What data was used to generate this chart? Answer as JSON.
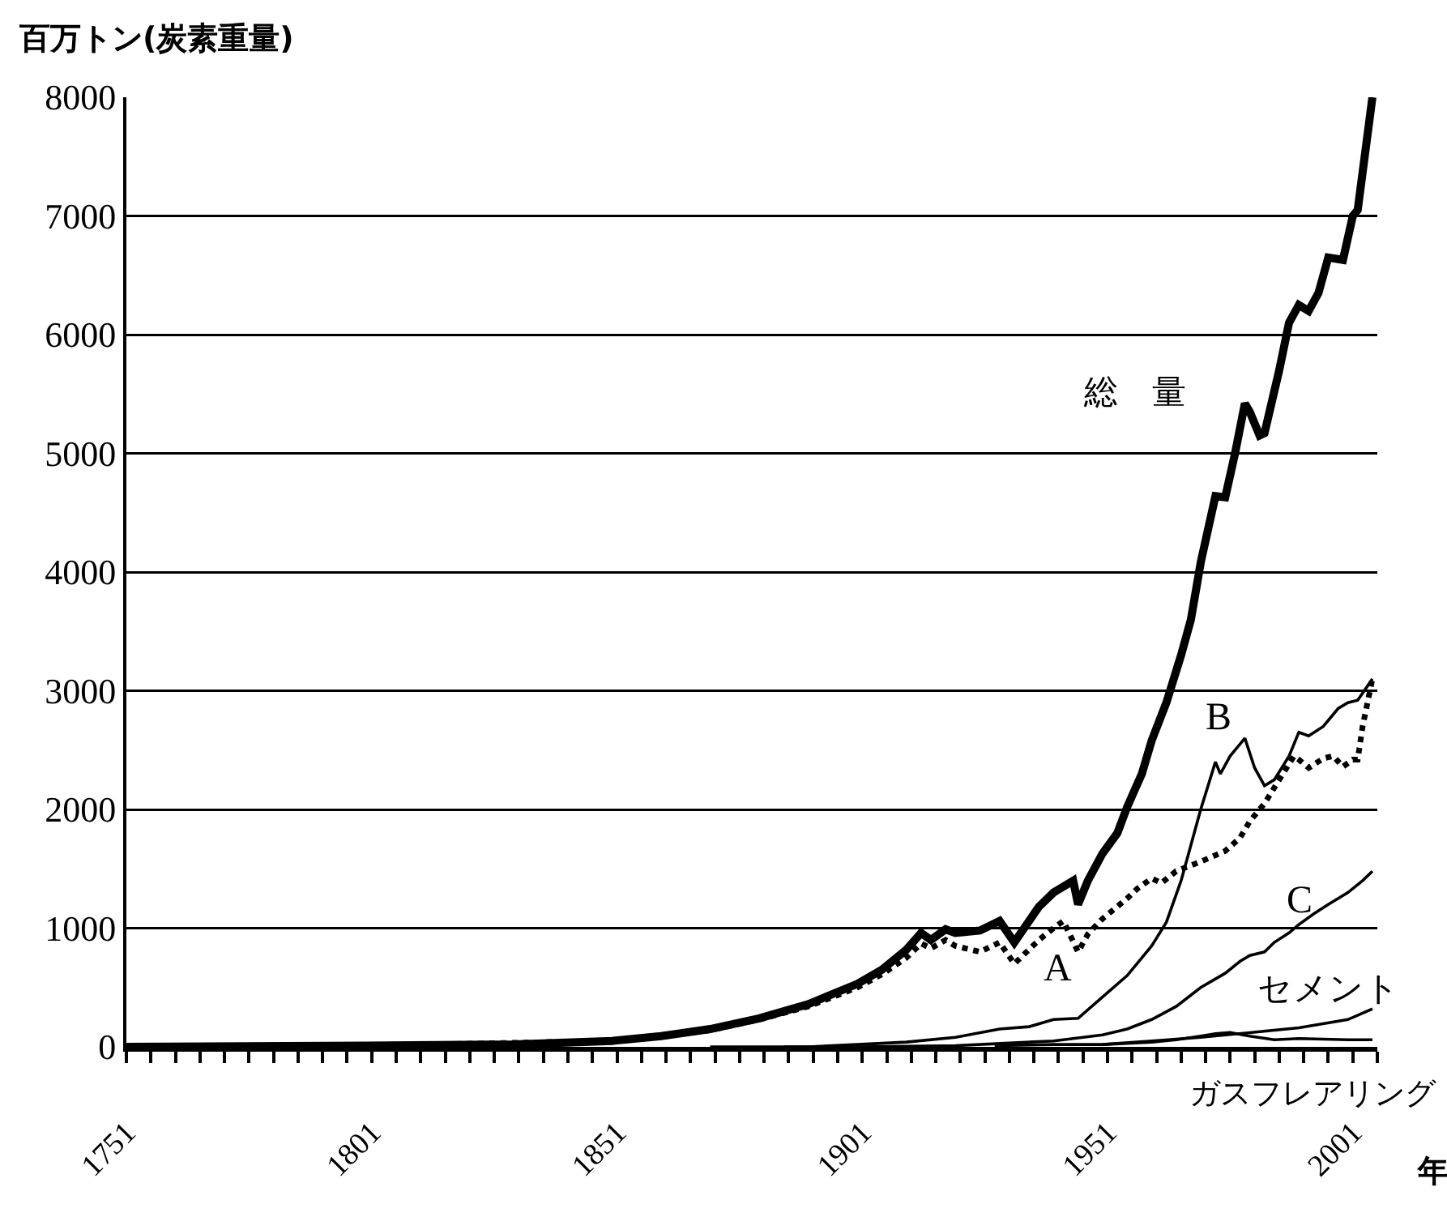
{
  "chart_data": {
    "type": "line",
    "ylabel": "百万トン(炭素重量)",
    "xlabel": "年",
    "xlim": [
      1751,
      2006
    ],
    "ylim": [
      0,
      8000
    ],
    "xticks": [
      1751,
      {
        "value": 1756,
        "label": null
      },
      {
        "value": 1761,
        "label": null
      },
      {
        "value": 1766,
        "label": null
      },
      {
        "value": 1771,
        "label": null
      },
      {
        "value": 1776,
        "label": null
      },
      {
        "value": 1781,
        "label": null
      },
      {
        "value": 1786,
        "label": null
      },
      {
        "value": 1791,
        "label": null
      },
      {
        "value": 1796,
        "label": null
      },
      1801,
      {
        "value": 1806,
        "label": null
      },
      {
        "value": 1811,
        "label": null
      },
      {
        "value": 1816,
        "label": null
      },
      {
        "value": 1821,
        "label": null
      },
      {
        "value": 1826,
        "label": null
      },
      {
        "value": 1831,
        "label": null
      },
      {
        "value": 1836,
        "label": null
      },
      {
        "value": 1841,
        "label": null
      },
      {
        "value": 1846,
        "label": null
      },
      1851,
      {
        "value": 1856,
        "label": null
      },
      {
        "value": 1861,
        "label": null
      },
      {
        "value": 1866,
        "label": null
      },
      {
        "value": 1871,
        "label": null
      },
      {
        "value": 1876,
        "label": null
      },
      {
        "value": 1881,
        "label": null
      },
      {
        "value": 1886,
        "label": null
      },
      {
        "value": 1891,
        "label": null
      },
      {
        "value": 1896,
        "label": null
      },
      1901,
      {
        "value": 1906,
        "label": null
      },
      {
        "value": 1911,
        "label": null
      },
      {
        "value": 1916,
        "label": null
      },
      {
        "value": 1921,
        "label": null
      },
      {
        "value": 1926,
        "label": null
      },
      {
        "value": 1931,
        "label": null
      },
      {
        "value": 1936,
        "label": null
      },
      {
        "value": 1941,
        "label": null
      },
      {
        "value": 1946,
        "label": null
      },
      1951,
      {
        "value": 1956,
        "label": null
      },
      {
        "value": 1961,
        "label": null
      },
      {
        "value": 1966,
        "label": null
      },
      {
        "value": 1971,
        "label": null
      },
      {
        "value": 1976,
        "label": null
      },
      {
        "value": 1981,
        "label": null
      },
      {
        "value": 1986,
        "label": null
      },
      {
        "value": 1991,
        "label": null
      },
      {
        "value": 1996,
        "label": null
      },
      2001,
      {
        "value": 2006,
        "label": null
      }
    ],
    "yticks": [
      0,
      1000,
      2000,
      3000,
      4000,
      5000,
      6000,
      7000,
      8000
    ],
    "grid": "y",
    "legend": false,
    "marker": "none",
    "series": [
      {
        "name": "総　量",
        "color": "#000000",
        "line_style": "solid",
        "x": [
          1751,
          1800,
          1830,
          1850,
          1860,
          1870,
          1880,
          1890,
          1900,
          1905,
          1910,
          1913,
          1915,
          1918,
          1920,
          1925,
          1929,
          1932,
          1937,
          1940,
          1942,
          1944,
          1945,
          1947,
          1950,
          1953,
          1955,
          1958,
          1960,
          1963,
          1966,
          1968,
          1970,
          1973,
          1975,
          1977,
          1979,
          1980,
          1982,
          1983,
          1986,
          1988,
          1990,
          1992,
          1994,
          1996,
          1999,
          2001,
          2002,
          2005
        ],
        "values": [
          0,
          10,
          20,
          50,
          90,
          150,
          240,
          360,
          530,
          650,
          819,
          960,
          900,
          990,
          960,
          980,
          1060,
          880,
          1180,
          1300,
          1350,
          1400,
          1200,
          1400,
          1630,
          1800,
          2020,
          2300,
          2580,
          2900,
          3300,
          3600,
          4080,
          4640,
          4630,
          5000,
          5420,
          5350,
          5150,
          5170,
          5700,
          6100,
          6250,
          6200,
          6350,
          6650,
          6630,
          7000,
          7050,
          8000
        ]
      },
      {
        "name": "A",
        "color": "#000000",
        "line_style": "dotted",
        "x": [
          1751,
          1800,
          1850,
          1860,
          1870,
          1880,
          1890,
          1900,
          1905,
          1910,
          1913,
          1915,
          1918,
          1920,
          1925,
          1929,
          1932,
          1937,
          1940,
          1942,
          1945,
          1947,
          1950,
          1955,
          1957,
          1960,
          1962,
          1965,
          1970,
          1975,
          1978,
          1980,
          1983,
          1986,
          1989,
          1990,
          1992,
          1995,
          1997,
          1999,
          2001,
          2002,
          2003,
          2004,
          2005
        ],
        "values": [
          0,
          10,
          50,
          90,
          140,
          230,
          340,
          500,
          610,
          750,
          870,
          830,
          900,
          850,
          800,
          880,
          700,
          900,
          1000,
          1060,
          800,
          950,
          1080,
          1250,
          1330,
          1420,
          1380,
          1480,
          1560,
          1650,
          1760,
          1900,
          2050,
          2250,
          2450,
          2420,
          2350,
          2430,
          2450,
          2360,
          2420,
          2420,
          2700,
          2900,
          3100
        ]
      },
      {
        "name": "B",
        "color": "#000000",
        "line_style": "solid",
        "x": [
          1870,
          1890,
          1900,
          1910,
          1920,
          1929,
          1935,
          1940,
          1945,
          1950,
          1955,
          1960,
          1963,
          1966,
          1968,
          1970,
          1973,
          1974,
          1976,
          1979,
          1981,
          1983,
          1985,
          1988,
          1990,
          1992,
          1995,
          1998,
          2000,
          2002,
          2005
        ],
        "values": [
          0,
          0,
          20,
          40,
          80,
          150,
          170,
          230,
          240,
          420,
          600,
          850,
          1050,
          1400,
          1700,
          2000,
          2400,
          2300,
          2450,
          2600,
          2350,
          2200,
          2250,
          2450,
          2650,
          2620,
          2700,
          2850,
          2900,
          2920,
          3100
        ]
      },
      {
        "name": "C",
        "color": "#000000",
        "line_style": "solid",
        "x": [
          1885,
          1900,
          1920,
          1930,
          1940,
          1950,
          1955,
          1960,
          1965,
          1970,
          1975,
          1978,
          1980,
          1983,
          1985,
          1988,
          1990,
          1993,
          1996,
          2000,
          2003,
          2005
        ],
        "values": [
          0,
          0,
          10,
          30,
          50,
          100,
          150,
          230,
          340,
          500,
          620,
          720,
          770,
          800,
          880,
          960,
          1030,
          1120,
          1200,
          1300,
          1400,
          1480
        ]
      },
      {
        "name": "セメント",
        "color": "#000000",
        "line_style": "solid",
        "x": [
          1928,
          1940,
          1950,
          1960,
          1970,
          1980,
          1990,
          2000,
          2005
        ],
        "values": [
          10,
          20,
          20,
          50,
          80,
          120,
          160,
          230,
          320
        ]
      },
      {
        "name": "ガスフレアリング",
        "color": "#000000",
        "line_style": "solid",
        "x": [
          1950,
          1960,
          1965,
          1970,
          1973,
          1976,
          1980,
          1985,
          1990,
          2000,
          2005
        ],
        "values": [
          20,
          40,
          60,
          90,
          110,
          120,
          90,
          60,
          70,
          60,
          60
        ]
      }
    ]
  }
}
